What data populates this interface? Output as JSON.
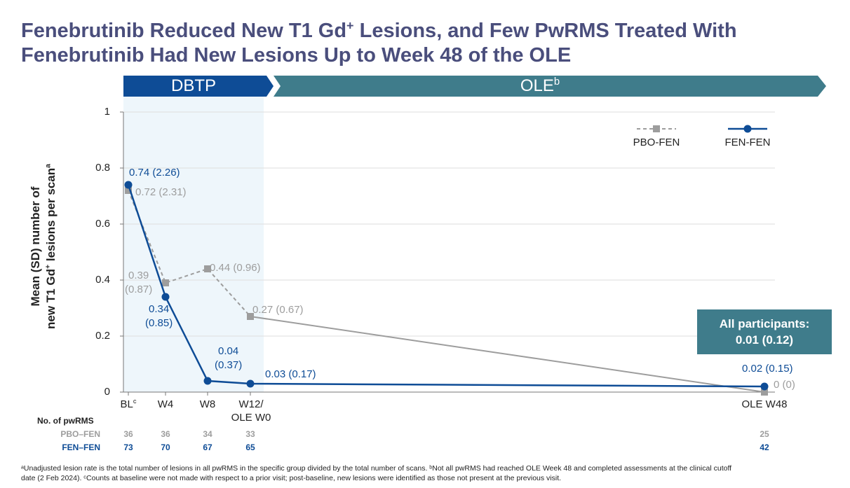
{
  "title": {
    "line1_pre": "Fenebrutinib Reduced New T1 Gd",
    "line1_sup": "+",
    "line1_post": " Lesions, and Few PwRMS Treated With",
    "line2": "Fenebrutinib Had New Lesions Up to Week 48 of the OLE"
  },
  "phases": {
    "dbtp": "DBTP",
    "ole": "OLE",
    "ole_sup": "b",
    "colors": {
      "dbtp": "#0e4c96",
      "ole": "#3f7c8b",
      "dbtp_shade": "#eef6fb"
    }
  },
  "callout": {
    "line1": "All participants:",
    "line2": "0.01 (0.12)"
  },
  "chart_data": {
    "type": "line",
    "ylabel_line1": "Mean (SD) number of",
    "ylabel_line2_pre": "new T1 Gd",
    "ylabel_line2_sup": "+",
    "ylabel_line2_post": " lesions per scan",
    "ylabel_line2_sup2": "a",
    "ylim": [
      0,
      1
    ],
    "yticks": [
      "0",
      "0.2",
      "0.4",
      "0.6",
      "0.8",
      "1"
    ],
    "grid": true,
    "legend_placement": "top-right",
    "categories": [
      {
        "label": "BL",
        "sup": "c"
      },
      {
        "label": "W4",
        "sup": ""
      },
      {
        "label": "W8",
        "sup": ""
      },
      {
        "label": "W12/",
        "label2": "OLE W0",
        "sup": ""
      },
      {
        "label": "OLE W48",
        "sup": ""
      }
    ],
    "series": [
      {
        "name": "PBO-FEN",
        "color": "#9d9d9d",
        "values": [
          0.72,
          0.39,
          0.44,
          0.27,
          0
        ],
        "labels": [
          [
            "0.72 (2.31)"
          ],
          [
            "0.39",
            "(0.87)"
          ],
          [
            "0.44 (0.96)"
          ],
          [
            "0.27 (0.67)"
          ],
          [
            "0 (0)"
          ]
        ]
      },
      {
        "name": "FEN-FEN",
        "color": "#0e4c96",
        "values": [
          0.74,
          0.34,
          0.04,
          0.03,
          0.02
        ],
        "labels": [
          [
            "0.74 (2.26)"
          ],
          [
            "0.34",
            "(0.85)"
          ],
          [
            "0.04",
            "(0.37)"
          ],
          [
            "0.03 (0.17)"
          ],
          [
            "0.02 (0.15)"
          ]
        ]
      }
    ]
  },
  "n_table": {
    "title": "No. of pwRMS",
    "rows": [
      {
        "label": "PBO–FEN",
        "values": [
          "36",
          "36",
          "34",
          "33",
          "25"
        ]
      },
      {
        "label": "FEN–FEN",
        "values": [
          "73",
          "70",
          "67",
          "65",
          "42"
        ]
      }
    ]
  },
  "footnote": {
    "line1": "ᵃUnadjusted lesion rate is the total number of lesions in all pwRMS in the specific group divided by the total number of scans. ᵇNot all pwRMS had reached OLE Week 48 and completed assessments at the clinical cutoff",
    "line2": "date (2 Feb 2024). ᶜCounts at baseline were not made with respect to a prior visit; post-baseline, new lesions were identified as those not present at the previous visit."
  }
}
